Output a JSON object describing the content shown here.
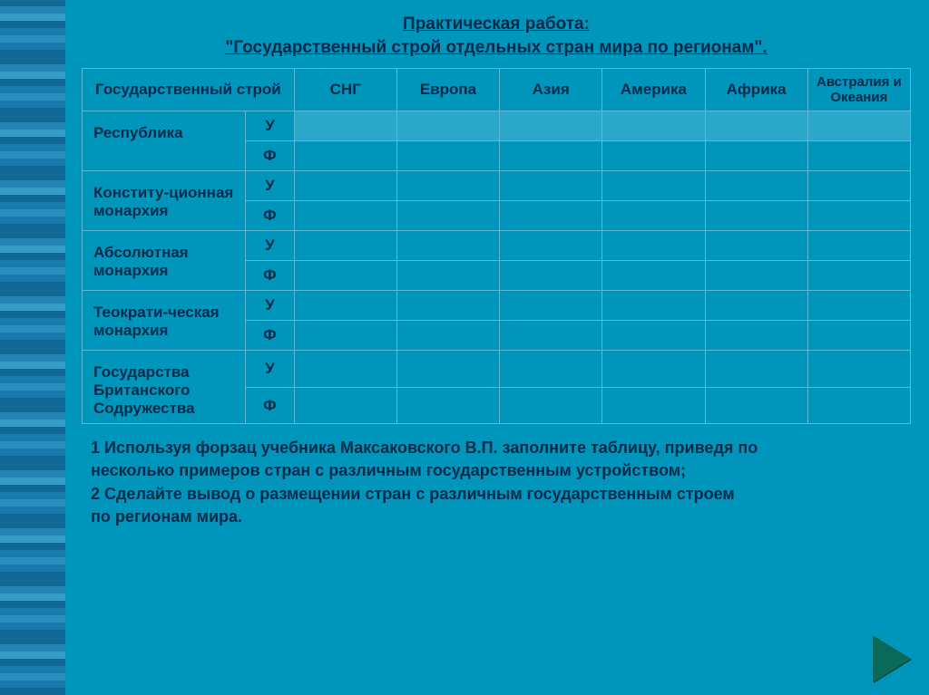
{
  "title_line1": "Практическая работа:",
  "title_line2": "\"Государственный строй отдельных стран мира по регионам\".",
  "columns": {
    "main": "Государственный строй",
    "regions": [
      "СНГ",
      "Европа",
      "Азия",
      "Америка",
      "Африка",
      "Австралия и Океания"
    ]
  },
  "sub_labels": {
    "u": "У",
    "f": "Ф"
  },
  "rows": [
    {
      "label": "Республика"
    },
    {
      "label": "Конститу-ционная монархия"
    },
    {
      "label": "Абсолютная монархия"
    },
    {
      "label": "Теократи-ческая монархия"
    },
    {
      "label": "Государства Британского Содружества"
    }
  ],
  "notes": {
    "n1a": "1  Используя форзац учебника Максаковского В.П. заполните таблицу, приведя по",
    "n1b": "    несколько примеров стран  с различным государственным устройством;",
    "n2a": "2    Сделайте вывод о размещении стран с различным государственным строем",
    "n2b": "    по регионам мира."
  },
  "colors": {
    "background": "#0095bb",
    "text": "#002a4a",
    "border": "#5ab8d8",
    "highlight_row": "rgba(120,200,230,0.35)",
    "arrow": "#0a6a5a"
  }
}
